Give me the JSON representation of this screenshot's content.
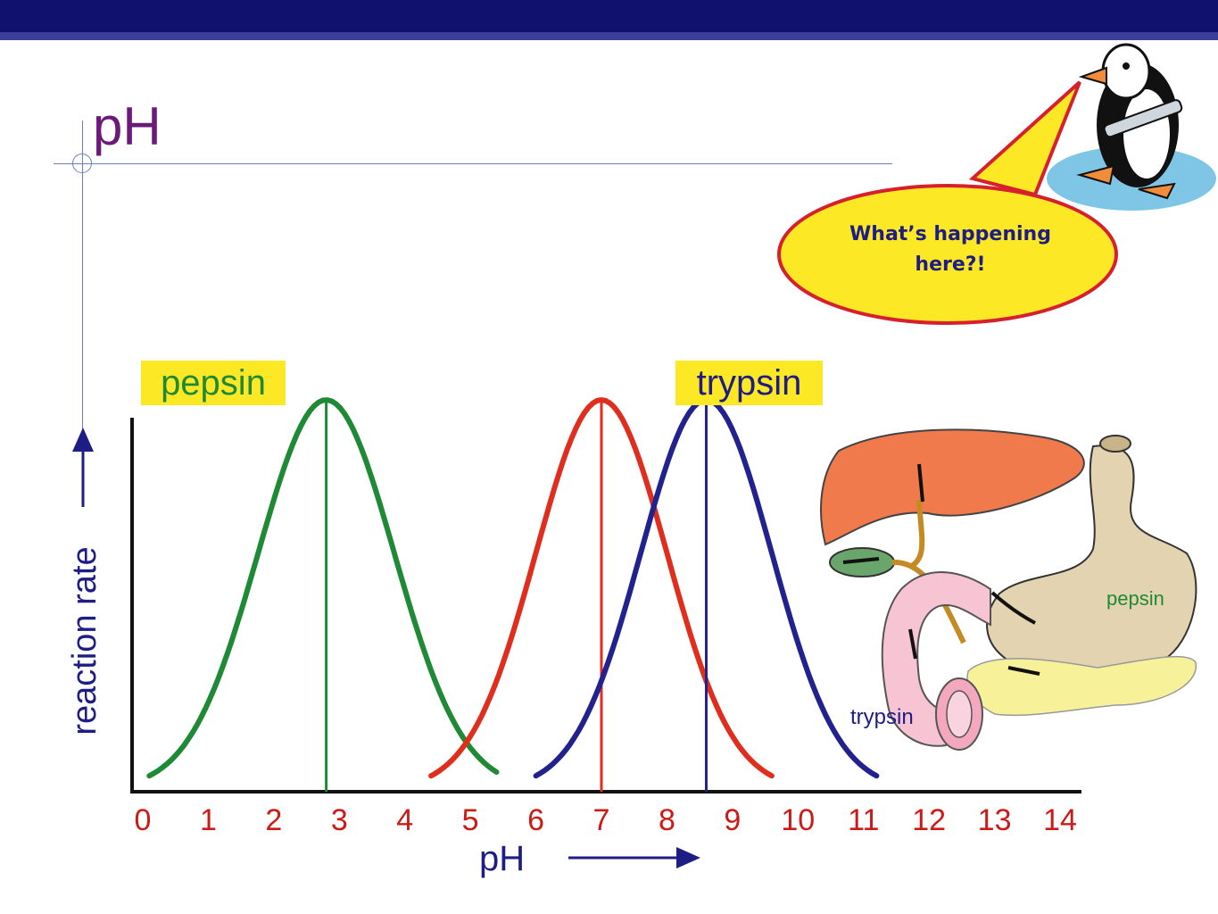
{
  "slide": {
    "title": "pH",
    "speech_bubble": "What’s happening here?!"
  },
  "organ_labels": {
    "stomach": "pepsin",
    "intestine": "trypsin"
  },
  "colors": {
    "title": "#6b1a7a",
    "pepsin": "#1f8a35",
    "trypsin": "#22228f",
    "middle_curve": "#e02e1e",
    "tick_labels": "#cc1b16",
    "label_box": "#fde825",
    "bubble_fill": "#fde825",
    "bubble_border": "#d6202d"
  },
  "chart_data": {
    "type": "line",
    "xlabel": "pH",
    "ylabel": "reaction rate",
    "xlim": [
      0,
      14
    ],
    "x_ticks": [
      "0",
      "1",
      "2",
      "3",
      "4",
      "5",
      "6",
      "7",
      "8",
      "9",
      "10",
      "11",
      "12",
      "13",
      "14"
    ],
    "y_ticks": [],
    "grid": false,
    "series": [
      {
        "name": "pepsin",
        "color": "#1f8a35",
        "optimum": 2.8,
        "start": 0.1,
        "end": 5.4,
        "peak": 1.0
      },
      {
        "name": "",
        "color": "#e02e1e",
        "optimum": 7.0,
        "start": 4.4,
        "end": 9.6,
        "peak": 1.0
      },
      {
        "name": "trypsin",
        "color": "#22228f",
        "optimum": 8.6,
        "start": 6.0,
        "end": 11.2,
        "peak": 1.0
      }
    ],
    "annotations": [
      "pepsin",
      "trypsin"
    ]
  }
}
